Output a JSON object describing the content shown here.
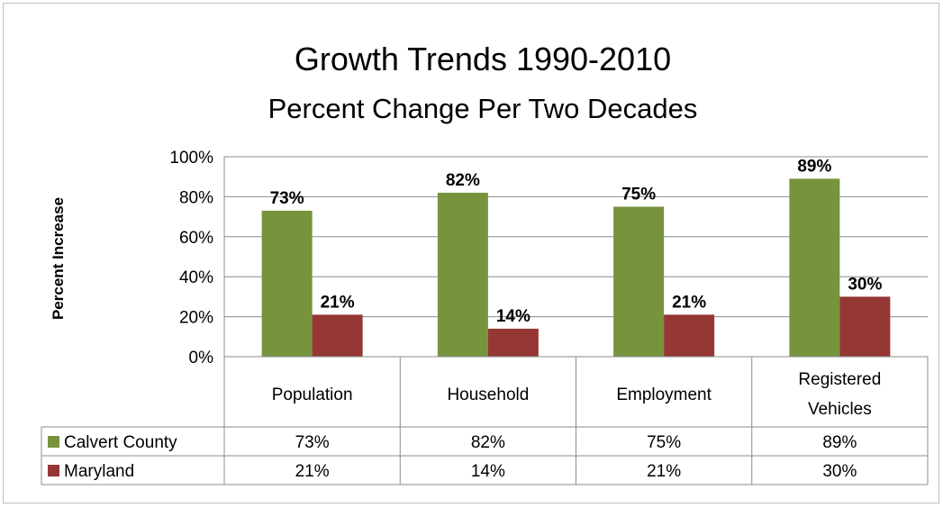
{
  "chart_data": {
    "type": "bar",
    "title": "Growth Trends 1990-2010",
    "subtitle": "Percent Change Per Two Decades",
    "ylabel": "Percent Increase",
    "xlabel": "",
    "ylim": [
      0,
      100
    ],
    "yticks": [
      "0%",
      "20%",
      "40%",
      "60%",
      "80%",
      "100%"
    ],
    "ytick_values": [
      0,
      20,
      40,
      60,
      80,
      100
    ],
    "grid": true,
    "legend": "data-table",
    "categories": [
      [
        "Population"
      ],
      [
        "Household"
      ],
      [
        "Employment"
      ],
      [
        "Registered",
        "Vehicles"
      ]
    ],
    "series": [
      {
        "name": "Calvert County",
        "color": "#77933c",
        "values": [
          73,
          82,
          75,
          89
        ],
        "labels": [
          "73%",
          "82%",
          "75%",
          "89%"
        ]
      },
      {
        "name": "Maryland",
        "color": "#953735",
        "values": [
          21,
          14,
          21,
          30
        ],
        "labels": [
          "21%",
          "14%",
          "21%",
          "30%"
        ]
      }
    ]
  }
}
